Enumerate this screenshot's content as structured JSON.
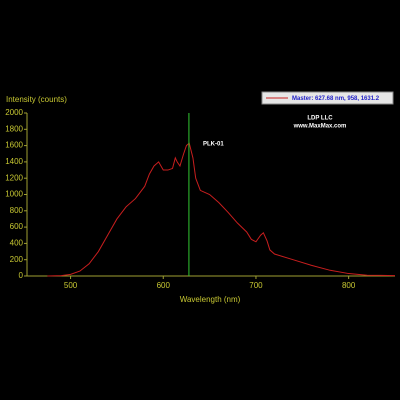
{
  "chart_data": {
    "type": "line",
    "y_label": "Intensity (counts)",
    "x_label": "Wavelength (nm)",
    "x": [
      475,
      490,
      500,
      510,
      520,
      530,
      540,
      550,
      560,
      570,
      580,
      585,
      590,
      595,
      600,
      605,
      610,
      613,
      615,
      618,
      622,
      625,
      628,
      632,
      635,
      640,
      650,
      660,
      670,
      680,
      690,
      695,
      700,
      705,
      708,
      712,
      715,
      720,
      740,
      760,
      780,
      800,
      820,
      850
    ],
    "series": [
      {
        "name": "Master",
        "color": "#c81e1e",
        "values": [
          0,
          5,
          20,
          60,
          150,
          300,
          500,
          700,
          850,
          950,
          1100,
          1250,
          1350,
          1400,
          1300,
          1300,
          1320,
          1450,
          1400,
          1350,
          1500,
          1600,
          1630,
          1450,
          1200,
          1050,
          1000,
          900,
          780,
          650,
          540,
          450,
          420,
          500,
          530,
          430,
          320,
          270,
          200,
          130,
          70,
          30,
          10,
          5
        ]
      }
    ],
    "xlim": [
      453,
      850
    ],
    "ylim": [
      0,
      2000
    ],
    "xticks": [
      500,
      600,
      700,
      800
    ],
    "yticks": [
      0,
      200,
      400,
      600,
      800,
      1000,
      1200,
      1400,
      1600,
      1800,
      2000
    ],
    "marker": {
      "x": 627.68,
      "color": "#32c832",
      "legend": "Master: 627.68 nm, 958, 1631.2"
    },
    "annotations": [
      "LDP LLC",
      "www.MaxMax.com",
      "PLK-01"
    ]
  }
}
